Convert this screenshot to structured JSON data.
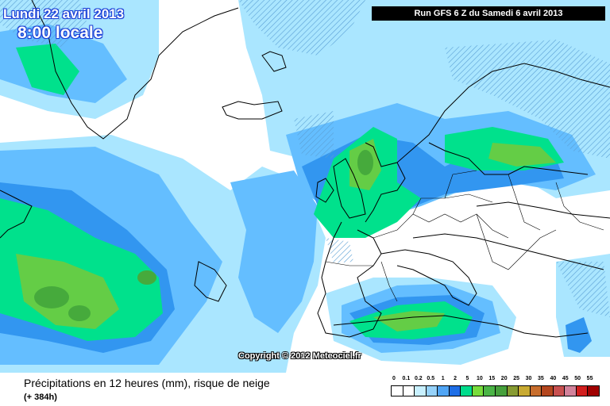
{
  "header": {
    "date": "Lundi 22 avril 2013",
    "local_time": "8:00 locale",
    "run_info": "Run GFS 6 Z du Samedi 6 avril 2013"
  },
  "copyright": "Copyright © 2012 Meteociel.fr",
  "footer": {
    "caption": "Précipitations en 12 heures (mm), risque de neige",
    "forecast_hour": "(+ 384h)"
  },
  "legend": {
    "labels": [
      "0",
      "0.1",
      "0.2",
      "0.5",
      "1",
      "2",
      "5",
      "10",
      "15",
      "20",
      "25",
      "30",
      "35",
      "40",
      "45",
      "50",
      "55"
    ],
    "colors": [
      "#ffffff",
      "#ffffff",
      "#c8f0ff",
      "#96d2fa",
      "#50a5f5",
      "#1e6ee6",
      "#00dc8c",
      "#78dc3c",
      "#4ab446",
      "#46a03c",
      "#879b32",
      "#c8aa32",
      "#c86e2d",
      "#b4461e",
      "#c85050",
      "#d2829b",
      "#d21e1e",
      "#a00000"
    ]
  },
  "colors": {
    "sea": "#ffffff",
    "land": "#ffffff",
    "coast": "#000000",
    "precip_light": "#aae6ff",
    "precip_1": "#64beff",
    "precip_2": "#3296f0",
    "precip_5": "#00e18c",
    "precip_10": "#64cd46",
    "precip_15": "#46aa3c",
    "snow_hatch": "#5a9fd4"
  }
}
